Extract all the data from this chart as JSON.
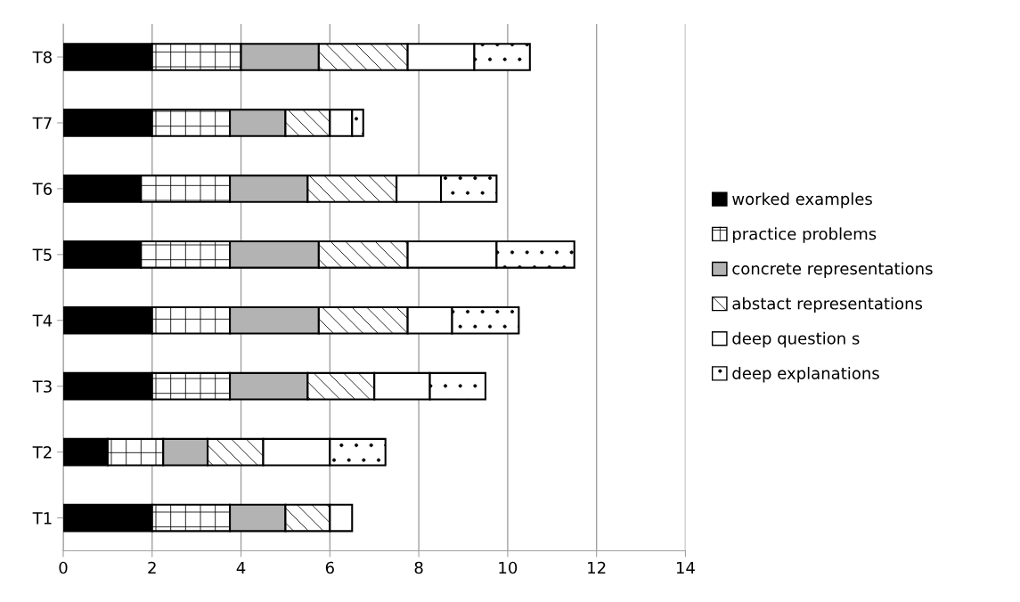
{
  "chart_data": {
    "type": "bar",
    "orientation": "horizontal",
    "stacked": true,
    "categories": [
      "T8",
      "T7",
      "T6",
      "T5",
      "T4",
      "T3",
      "T2",
      "T1"
    ],
    "series": [
      {
        "name": "worked examples",
        "color": "#000000",
        "values": [
          2,
          2,
          1.75,
          1.75,
          2,
          2,
          1,
          2
        ]
      },
      {
        "name": "practice problems",
        "color": "#ffffff",
        "values": [
          2,
          1.75,
          2,
          2,
          1.75,
          1.75,
          1.25,
          1.75
        ]
      },
      {
        "name": "concrete representations",
        "color": "#b3b3b3",
        "values": [
          1.75,
          1.25,
          1.75,
          2,
          2,
          1.75,
          1,
          1.25
        ]
      },
      {
        "name": "abstact representations",
        "color": "#ffffff",
        "values": [
          2,
          1,
          2,
          2,
          2,
          1.5,
          1.25,
          1
        ]
      },
      {
        "name": "deep question s",
        "color": "#ffffff",
        "values": [
          1.5,
          0.5,
          1,
          2,
          1,
          1.25,
          1.5,
          0.5
        ]
      },
      {
        "name": "deep explanations",
        "color": "#ffffff",
        "values": [
          1.25,
          0.25,
          1.25,
          1.75,
          1.5,
          1.25,
          1.25,
          null
        ]
      }
    ],
    "xlim": [
      0,
      14
    ],
    "xticks": [
      0,
      2,
      4,
      6,
      8,
      10,
      12,
      14
    ],
    "grid": "x",
    "legend": "right"
  }
}
